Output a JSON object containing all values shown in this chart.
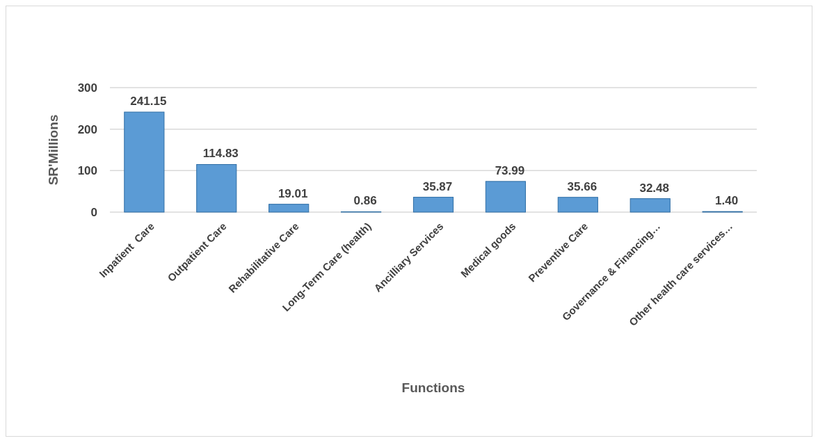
{
  "chart_data": {
    "type": "bar",
    "xlabel": "Functions",
    "ylabel": "SR'Millions",
    "categories": [
      "Inpatient  Care",
      "Outpatient Care",
      "Rehabilitative Care",
      "Long-Term Care (health)",
      "Ancilliary Services",
      "Medical goods",
      "Preventive Care",
      "Governance & Financing…",
      "Other health care services…"
    ],
    "values": [
      241.15,
      114.83,
      19.01,
      0.86,
      35.87,
      73.99,
      35.66,
      32.48,
      1.4
    ],
    "value_labels": [
      "241.15",
      "114.83",
      "19.01",
      "0.86",
      "35.87",
      "73.99",
      "35.66",
      "32.48",
      "1.40"
    ],
    "color": "#5b9bd5",
    "ylim": [
      0,
      300
    ],
    "yticks": [
      0,
      100,
      200,
      300
    ],
    "grid": "y"
  }
}
